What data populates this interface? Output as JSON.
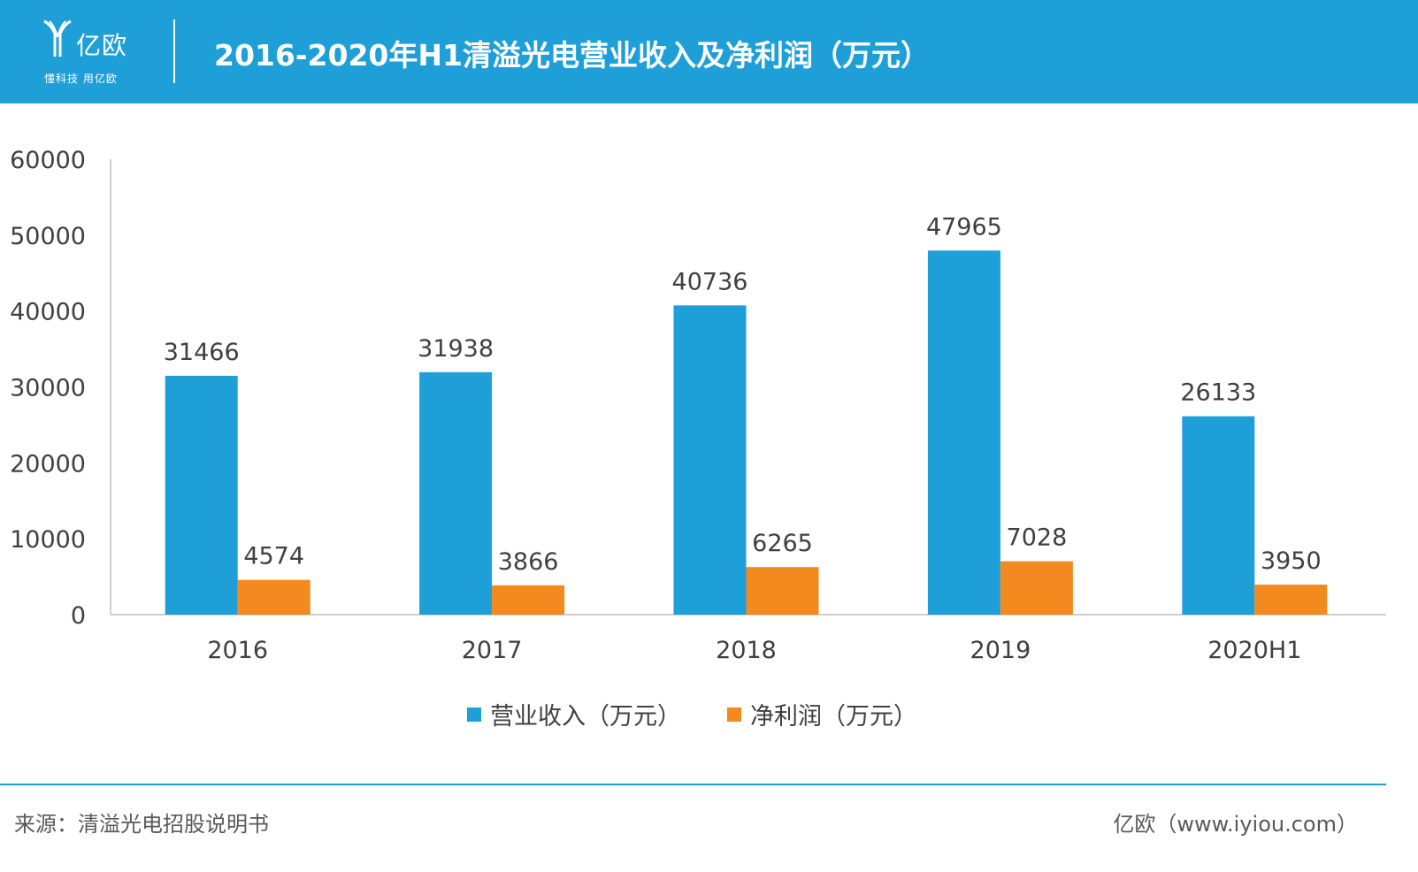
{
  "header": {
    "logo_text": "亿欧",
    "logo_tagline": "懂科技 用亿欧",
    "title": "2016-2020年H1清溢光电营业收入及净利润（万元）"
  },
  "colors": {
    "header_bg": "#1e9fd8",
    "revenue": "#1e9fd8",
    "profit": "#f28a1f",
    "axis_text": "#404040"
  },
  "chart_data": {
    "type": "bar",
    "categories": [
      "2016",
      "2017",
      "2018",
      "2019",
      "2020H1"
    ],
    "series": [
      {
        "name": "营业收入（万元）",
        "values": [
          31466,
          31938,
          40736,
          47965,
          26133
        ]
      },
      {
        "name": "净利润（万元）",
        "values": [
          4574,
          3866,
          6265,
          7028,
          3950
        ]
      }
    ],
    "ylim": [
      0,
      60000
    ],
    "yticks": [
      "0",
      "10000",
      "20000",
      "30000",
      "40000",
      "50000",
      "60000"
    ],
    "legend_position": "bottom",
    "grid": false
  },
  "footer": {
    "source": "来源：清溢光电招股说明书",
    "credit": "亿欧（www.iyiou.com）"
  }
}
